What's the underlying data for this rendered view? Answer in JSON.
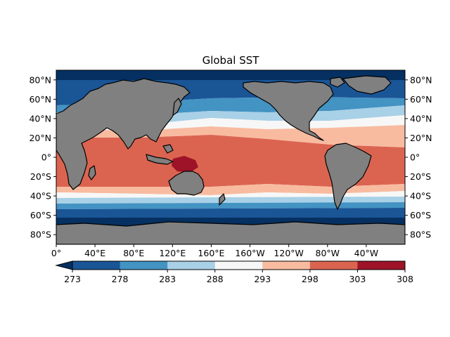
{
  "title": "Global SST",
  "map": {
    "land_color": "#808080",
    "coastline_color": "#000000",
    "lon_ticks": [
      "0°",
      "40°E",
      "80°E",
      "120°E",
      "160°E",
      "160°W",
      "120°W",
      "80°W",
      "40°W"
    ],
    "lat_ticks": [
      "80°N",
      "60°N",
      "40°N",
      "20°N",
      "0°",
      "20°S",
      "40°S",
      "60°S",
      "80°S"
    ]
  },
  "colorbar": {
    "extend": "min",
    "levels": [
      "273",
      "278",
      "283",
      "288",
      "293",
      "298",
      "303",
      "308"
    ],
    "colors": [
      "#1a5596",
      "#4393c3",
      "#a8d0e6",
      "#f7f7f7",
      "#f8bba0",
      "#db6450",
      "#9e1328"
    ],
    "under_color": "#053061"
  }
}
